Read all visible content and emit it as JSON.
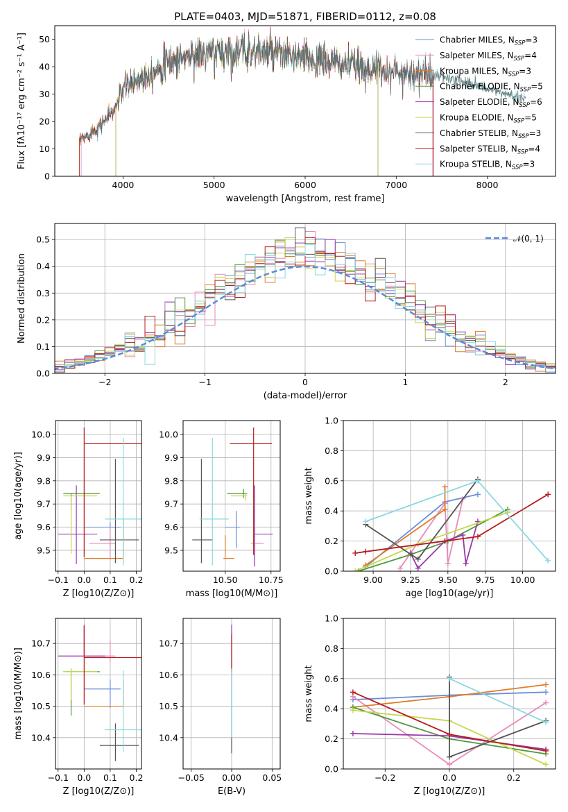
{
  "title": "PLATE=0403, MJD=51871, FIBERID=0112, z=0.08",
  "colors": {
    "Chabrier MILES": "#6a8ed8",
    "Salpeter MILES": "#e88ab8",
    "Kroupa MILES": "#e07b28",
    "Chabrier ELODIE": "#4f9a3c",
    "Salpeter ELODIE": "#9a36a8",
    "Kroupa ELODIE": "#c8d64a",
    "Chabrier STELIB": "#555555",
    "Salpeter STELIB": "#b51c1c",
    "Kroupa STELIB": "#8ad8e0",
    "normal": "#5b8ad8"
  },
  "chart_data": [
    {
      "id": "spectrum",
      "type": "line",
      "xlabel": "wavelength [Angstrom, rest frame]",
      "ylabel": "Flux [fλ10⁻¹⁷ erg cm⁻² s⁻¹ A⁻¹]",
      "xlim": [
        3250,
        8750
      ],
      "ylim": [
        0,
        55
      ],
      "xticks": [
        4000,
        5000,
        6000,
        7000,
        8000
      ],
      "yticks": [
        0,
        10,
        20,
        30,
        40,
        50
      ],
      "legend_position": "top-right",
      "legend": [
        "Chabrier MILES, N_SSP=3",
        "Salpeter MILES, N_SSP=4",
        "Kroupa MILES, N_SSP=3",
        "Chabrier ELODIE, N_SSP=5",
        "Salpeter ELODIE, N_SSP=6",
        "Kroupa ELODIE, N_SSP=5",
        "Chabrier STELIB, N_SSP=3",
        "Salpeter STELIB, N_SSP=4",
        "Kroupa STELIB, N_SSP=3"
      ],
      "continuum": [
        [
          3520,
          13
        ],
        [
          3700,
          17
        ],
        [
          3900,
          24
        ],
        [
          4000,
          32
        ],
        [
          4200,
          36
        ],
        [
          4400,
          40
        ],
        [
          4700,
          44
        ],
        [
          5000,
          45
        ],
        [
          5400,
          46
        ],
        [
          5800,
          44
        ],
        [
          6200,
          42
        ],
        [
          6600,
          40
        ],
        [
          7000,
          38
        ],
        [
          7400,
          37
        ],
        [
          7800,
          34
        ],
        [
          8200,
          30
        ],
        [
          8400,
          28
        ]
      ]
    },
    {
      "id": "residuals",
      "type": "bar",
      "xlabel": "(data-model)/error",
      "ylabel": "Normed distribution",
      "xlim": [
        -2.5,
        2.5
      ],
      "ylim": [
        0,
        0.56
      ],
      "xticks": [
        -2,
        -1,
        0,
        1,
        2
      ],
      "yticks": [
        0.0,
        0.1,
        0.2,
        0.3,
        0.4,
        0.5
      ],
      "grid": true,
      "legend_position": "top-right",
      "legend": [
        "𝒩(0, 1)"
      ],
      "bin_width": 0.1
    },
    {
      "id": "z-age",
      "type": "scatter",
      "xlabel": "Z [log10(Z/Z⊙)]",
      "ylabel": "age  [log10(age/yr)]",
      "xlim": [
        -0.11,
        0.22
      ],
      "ylim": [
        9.41,
        10.06
      ],
      "xticks": [
        -0.1,
        0.0,
        0.1,
        0.2
      ],
      "yticks": [
        9.5,
        9.6,
        9.7,
        9.8,
        9.9,
        10.0
      ],
      "grid": true,
      "points": [
        {
          "model": "Chabrier MILES",
          "x": 0.1,
          "xerr": [
            0.1,
            0.04
          ],
          "y": 9.6,
          "yerr": [
            0.09,
            0.02
          ]
        },
        {
          "model": "Salpeter MILES",
          "x": 0.1,
          "xerr": [
            0.08,
            0.02
          ],
          "y": 9.53,
          "yerr": [
            0.07,
            0.07
          ]
        },
        {
          "model": "Kroupa MILES",
          "x": 0.15,
          "xerr": [
            0.15,
            0.0
          ],
          "y": 9.465,
          "yerr": [
            0.0,
            0.175
          ]
        },
        {
          "model": "Chabrier ELODIE",
          "x": -0.05,
          "xerr": [
            0.03,
            0.11
          ],
          "y": 9.745,
          "yerr": [
            0.07,
            0.0
          ]
        },
        {
          "model": "Salpeter ELODIE",
          "x": -0.03,
          "xerr": [
            0.07,
            0.08
          ],
          "y": 9.57,
          "yerr": [
            0.13,
            0.21
          ]
        },
        {
          "model": "Kroupa ELODIE",
          "x": -0.05,
          "xerr": [
            0.03,
            0.1
          ],
          "y": 9.735,
          "yerr": [
            0.25,
            0.0
          ]
        },
        {
          "model": "Chabrier STELIB",
          "x": 0.12,
          "xerr": [
            0.06,
            0.09
          ],
          "y": 9.545,
          "yerr": [
            0.1,
            0.35
          ]
        },
        {
          "model": "Salpeter STELIB",
          "x": 0.0,
          "xerr": [
            0.0,
            0.22
          ],
          "y": 9.96,
          "yerr": [
            0.49,
            0.07
          ]
        },
        {
          "model": "Kroupa STELIB",
          "x": 0.15,
          "xerr": [
            0.07,
            0.07
          ],
          "y": 9.635,
          "yerr": [
            0.2,
            0.35
          ]
        }
      ]
    },
    {
      "id": "mass-age",
      "type": "scatter",
      "xlabel": "mass [log10(M/M⊙)]",
      "ylabel": "",
      "xlim": [
        10.27,
        10.8
      ],
      "ylim": [
        9.41,
        10.06
      ],
      "xticks": [
        10.5,
        10.75
      ],
      "yticks": [
        9.5,
        9.6,
        9.7,
        9.8,
        9.9,
        10.0
      ],
      "grid": true,
      "points": [
        {
          "model": "Chabrier MILES",
          "x": 10.56,
          "xerr": [
            0.06,
            0.02
          ],
          "y": 9.6,
          "yerr": [
            0.09,
            0.07
          ]
        },
        {
          "model": "Salpeter MILES",
          "x": 10.66,
          "xerr": [
            0.02,
            0.05
          ],
          "y": 9.53,
          "yerr": [
            0.08,
            0.07
          ]
        },
        {
          "model": "Kroupa MILES",
          "x": 10.5,
          "xerr": [
            0.01,
            0.05
          ],
          "y": 9.465,
          "yerr": [
            0.0,
            0.1
          ]
        },
        {
          "model": "Chabrier ELODIE",
          "x": 10.6,
          "xerr": [
            0.09,
            0.02
          ],
          "y": 9.745,
          "yerr": [
            0.02,
            0.02
          ]
        },
        {
          "model": "Salpeter ELODIE",
          "x": 10.66,
          "xerr": [
            0.0,
            0.1
          ],
          "y": 9.57,
          "yerr": [
            0.14,
            0.21
          ]
        },
        {
          "model": "Kroupa ELODIE",
          "x": 10.61,
          "xerr": [
            0.08,
            0.01
          ],
          "y": 9.735,
          "yerr": [
            0.02,
            0.01
          ]
        },
        {
          "model": "Chabrier STELIB",
          "x": 10.37,
          "xerr": [
            0.05,
            0.06
          ],
          "y": 9.545,
          "yerr": [
            0.1,
            0.35
          ]
        },
        {
          "model": "Salpeter STELIB",
          "x": 10.655,
          "xerr": [
            0.13,
            0.1
          ],
          "y": 9.96,
          "yerr": [
            0.48,
            0.07
          ]
        },
        {
          "model": "Kroupa STELIB",
          "x": 10.43,
          "xerr": [
            0.07,
            0.09
          ],
          "y": 9.635,
          "yerr": [
            0.2,
            0.35
          ]
        }
      ]
    },
    {
      "id": "age-weight",
      "type": "line",
      "xlabel": "age  [log10(age/yr)]",
      "ylabel": "mass weight",
      "xlim": [
        8.8,
        10.22
      ],
      "ylim": [
        0,
        1
      ],
      "xticks": [
        9.0,
        9.25,
        9.5,
        9.75,
        10.0
      ],
      "yticks": [
        0.0,
        0.2,
        0.4,
        0.6,
        0.8,
        1.0
      ],
      "grid": true,
      "series": [
        {
          "model": "Chabrier MILES",
          "x": [
            8.95,
            9.48,
            9.7
          ],
          "y": [
            0.03,
            0.46,
            0.51
          ]
        },
        {
          "model": "Salpeter MILES",
          "x": [
            9.18,
            9.48,
            9.5,
            9.6
          ],
          "y": [
            0.02,
            0.45,
            0.05,
            0.48
          ]
        },
        {
          "model": "Kroupa MILES",
          "x": [
            8.95,
            9.48,
            9.48
          ],
          "y": [
            0.04,
            0.41,
            0.56
          ]
        },
        {
          "model": "Chabrier ELODIE",
          "x": [
            8.9,
            9.25,
            9.5,
            9.9
          ],
          "y": [
            0.0,
            0.11,
            0.2,
            0.41
          ]
        },
        {
          "model": "Salpeter ELODIE",
          "x": [
            9.25,
            9.3,
            9.48,
            9.6,
            9.62,
            9.7
          ],
          "y": [
            0.12,
            0.02,
            0.2,
            0.24,
            0.05,
            0.33
          ]
        },
        {
          "model": "Kroupa ELODIE",
          "x": [
            8.88,
            9.3,
            9.9
          ],
          "y": [
            0.0,
            0.18,
            0.39
          ]
        },
        {
          "model": "Chabrier STELIB",
          "x": [
            8.95,
            9.3,
            9.7
          ],
          "y": [
            0.31,
            0.08,
            0.61
          ]
        },
        {
          "model": "Salpeter STELIB",
          "x": [
            8.88,
            8.95,
            9.48,
            9.7,
            10.17
          ],
          "y": [
            0.12,
            0.13,
            0.2,
            0.23,
            0.51
          ]
        },
        {
          "model": "Kroupa STELIB",
          "x": [
            8.95,
            9.7,
            10.17
          ],
          "y": [
            0.33,
            0.6,
            0.07
          ]
        }
      ]
    },
    {
      "id": "z-mass",
      "type": "scatter",
      "xlabel": "Z [log10(Z/Z⊙)]",
      "ylabel": "mass [log10(M/M⊙)]",
      "xlim": [
        -0.11,
        0.22
      ],
      "ylim": [
        10.3,
        10.78
      ],
      "xticks": [
        -0.1,
        0.0,
        0.1,
        0.2
      ],
      "yticks": [
        10.4,
        10.5,
        10.6,
        10.7
      ],
      "grid": true,
      "points": [
        {
          "model": "Chabrier MILES",
          "x": 0.1,
          "xerr": [
            0.1,
            0.04
          ],
          "y": 10.555,
          "yerr": [
            0.06,
            0.03
          ]
        },
        {
          "model": "Salpeter MILES",
          "x": 0.1,
          "xerr": [
            0.08,
            0.02
          ],
          "y": 10.66,
          "yerr": [
            0.02,
            0.05
          ]
        },
        {
          "model": "Kroupa MILES",
          "x": 0.15,
          "xerr": [
            0.15,
            0.0
          ],
          "y": 10.5,
          "yerr": [
            0.0,
            0.08
          ]
        },
        {
          "model": "Chabrier ELODIE",
          "x": -0.05,
          "xerr": [
            0.03,
            0.11
          ],
          "y": 10.61,
          "yerr": [
            0.14,
            0.01
          ]
        },
        {
          "model": "Salpeter ELODIE",
          "x": 0.0,
          "xerr": [
            0.1,
            0.08
          ],
          "y": 10.66,
          "yerr": [
            0.0,
            0.1
          ]
        },
        {
          "model": "Kroupa ELODIE",
          "x": -0.05,
          "xerr": [
            0.03,
            0.1
          ],
          "y": 10.61,
          "yerr": [
            0.09,
            0.01
          ]
        },
        {
          "model": "Chabrier STELIB",
          "x": 0.12,
          "xerr": [
            0.06,
            0.09
          ],
          "y": 10.375,
          "yerr": [
            0.05,
            0.07
          ]
        },
        {
          "model": "Salpeter STELIB",
          "x": 0.0,
          "xerr": [
            0.0,
            0.22
          ],
          "y": 10.655,
          "yerr": [
            0.15,
            0.1
          ]
        },
        {
          "model": "Kroupa STELIB",
          "x": 0.15,
          "xerr": [
            0.07,
            0.07
          ],
          "y": 10.425,
          "yerr": [
            0.07,
            0.19
          ]
        }
      ]
    },
    {
      "id": "ebv-mass",
      "type": "scatter",
      "xlabel": "E(B-V)",
      "ylabel": "",
      "xlim": [
        -0.06,
        0.06
      ],
      "ylim": [
        10.3,
        10.78
      ],
      "xticks": [
        -0.05,
        0.0,
        0.05
      ],
      "yticks": [
        10.4,
        10.5,
        10.6,
        10.7
      ],
      "grid": true,
      "points": [
        {
          "model": "Chabrier STELIB",
          "x": 0.0,
          "y": 10.45,
          "yerr": [
            0.1,
            0.1
          ]
        },
        {
          "model": "Salpeter ELODIE",
          "x": 0.0,
          "y": 10.66,
          "yerr": [
            0.05,
            0.1
          ]
        },
        {
          "model": "Salpeter STELIB",
          "x": 0.0,
          "y": 10.65,
          "yerr": [
            0.1,
            0.08
          ]
        },
        {
          "model": "Kroupa STELIB",
          "x": 0.0,
          "y": 10.5,
          "yerr": [
            0.1,
            0.12
          ]
        }
      ]
    },
    {
      "id": "z-weight",
      "type": "line",
      "xlabel": "Z [log10(Z/Z⊙)]",
      "ylabel": "mass weight",
      "xlim": [
        -0.33,
        0.33
      ],
      "ylim": [
        0,
        1
      ],
      "xticks": [
        -0.2,
        0.0,
        0.2
      ],
      "yticks": [
        0.0,
        0.2,
        0.4,
        0.6,
        0.8,
        1.0
      ],
      "grid": true,
      "series": [
        {
          "model": "Chabrier MILES",
          "x": [
            -0.3,
            0.0,
            0.3
          ],
          "y": [
            0.46,
            0.49,
            0.51
          ]
        },
        {
          "model": "Salpeter MILES",
          "x": [
            -0.3,
            0.0,
            0.3
          ],
          "y": [
            0.48,
            0.03,
            0.44
          ]
        },
        {
          "model": "Kroupa MILES",
          "x": [
            -0.3,
            0.0,
            0.3
          ],
          "y": [
            0.41,
            0.48,
            0.56
          ]
        },
        {
          "model": "Chabrier ELODIE",
          "x": [
            -0.3,
            0.0,
            0.3
          ],
          "y": [
            0.41,
            0.2,
            0.1
          ]
        },
        {
          "model": "Salpeter ELODIE",
          "x": [
            -0.3,
            0.0,
            0.3
          ],
          "y": [
            0.235,
            0.22,
            0.13
          ]
        },
        {
          "model": "Kroupa ELODIE",
          "x": [
            -0.3,
            0.0,
            0.3
          ],
          "y": [
            0.39,
            0.32,
            0.03
          ]
        },
        {
          "model": "Chabrier STELIB",
          "x": [
            0.0,
            0.0,
            0.3
          ],
          "y": [
            0.61,
            0.08,
            0.32
          ]
        },
        {
          "model": "Salpeter STELIB",
          "x": [
            -0.3,
            0.0,
            0.3
          ],
          "y": [
            0.51,
            0.23,
            0.12
          ]
        },
        {
          "model": "Kroupa STELIB",
          "x": [
            0.0,
            0.3
          ],
          "y": [
            0.6,
            0.31
          ]
        }
      ]
    }
  ]
}
